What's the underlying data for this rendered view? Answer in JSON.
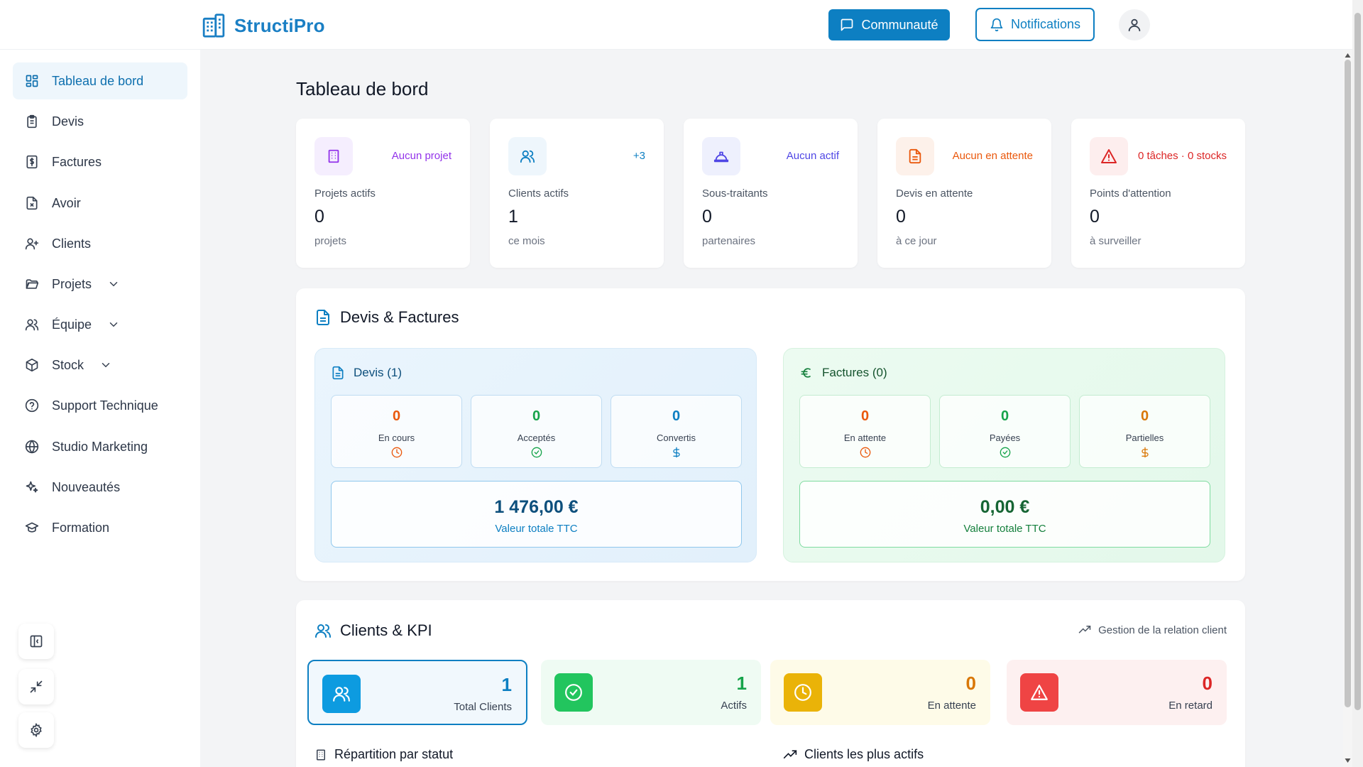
{
  "brand": {
    "name": "StructiPro"
  },
  "header": {
    "community_label": "Communauté",
    "notifications_label": "Notifications"
  },
  "sidebar": {
    "items": [
      {
        "label": "Tableau de bord",
        "icon": "dashboard-icon",
        "active": true
      },
      {
        "label": "Devis",
        "icon": "clipboard-icon"
      },
      {
        "label": "Factures",
        "icon": "invoice-dollar-icon"
      },
      {
        "label": "Avoir",
        "icon": "file-x-icon"
      },
      {
        "label": "Clients",
        "icon": "user-plus-icon"
      },
      {
        "label": "Projets",
        "icon": "folder-open-icon",
        "expandable": true
      },
      {
        "label": "Équipe",
        "icon": "users-icon",
        "expandable": true
      },
      {
        "label": "Stock",
        "icon": "box-icon",
        "expandable": true
      },
      {
        "label": "Support Technique",
        "icon": "help-circle-icon"
      },
      {
        "label": "Studio Marketing",
        "icon": "globe-icon"
      },
      {
        "label": "Nouveautés",
        "icon": "sparkles-icon"
      },
      {
        "label": "Formation",
        "icon": "graduation-cap-icon"
      }
    ]
  },
  "page": {
    "title": "Tableau de bord"
  },
  "stats": [
    {
      "badge": "Aucun projet",
      "label": "Projets actifs",
      "value": "0",
      "sub": "projets",
      "color": "#9333ea",
      "bg": "#f5eefe"
    },
    {
      "badge": "+3",
      "label": "Clients actifs",
      "value": "1",
      "sub": "ce mois",
      "color": "#0d7fc2",
      "bg": "#eef6fc"
    },
    {
      "badge": "Aucun actif",
      "label": "Sous-traitants",
      "value": "0",
      "sub": "partenaires",
      "color": "#4f46e5",
      "bg": "#eef0fd"
    },
    {
      "badge": "Aucun en attente",
      "label": "Devis en attente",
      "value": "0",
      "sub": "à ce jour",
      "color": "#ea580c",
      "bg": "#fdf1ea"
    },
    {
      "badge": "0 tâches · 0 stocks",
      "label": "Points d'attention",
      "value": "0",
      "sub": "à surveiller",
      "color": "#dc2626",
      "bg": "#fdeeee"
    }
  ],
  "devis_factures": {
    "title": "Devis & Factures",
    "devis": {
      "title": "Devis (1)",
      "items": [
        {
          "value": "0",
          "label": "En cours",
          "color": "#ea580c"
        },
        {
          "value": "0",
          "label": "Acceptés",
          "color": "#16a34a"
        },
        {
          "value": "0",
          "label": "Convertis",
          "color": "#0d7fc2"
        }
      ],
      "total": "1 476,00 €",
      "total_label": "Valeur totale TTC"
    },
    "factures": {
      "title": "Factures (0)",
      "items": [
        {
          "value": "0",
          "label": "En attente",
          "color": "#ea580c"
        },
        {
          "value": "0",
          "label": "Payées",
          "color": "#16a34a"
        },
        {
          "value": "0",
          "label": "Partielles",
          "color": "#d97706"
        }
      ],
      "total": "0,00 €",
      "total_label": "Valeur totale TTC"
    }
  },
  "clients_kpi": {
    "title": "Clients & KPI",
    "crm_link": "Gestion de la relation client",
    "kpis": [
      {
        "value": "1",
        "label": "Total Clients",
        "color": "#0d7fc2"
      },
      {
        "value": "1",
        "label": "Actifs",
        "color": "#16a34a"
      },
      {
        "value": "0",
        "label": "En attente",
        "color": "#d97706"
      },
      {
        "value": "0",
        "label": "En retard",
        "color": "#dc2626"
      }
    ],
    "repartition_title": "Répartition par statut",
    "top_clients_title": "Clients les plus actifs"
  }
}
